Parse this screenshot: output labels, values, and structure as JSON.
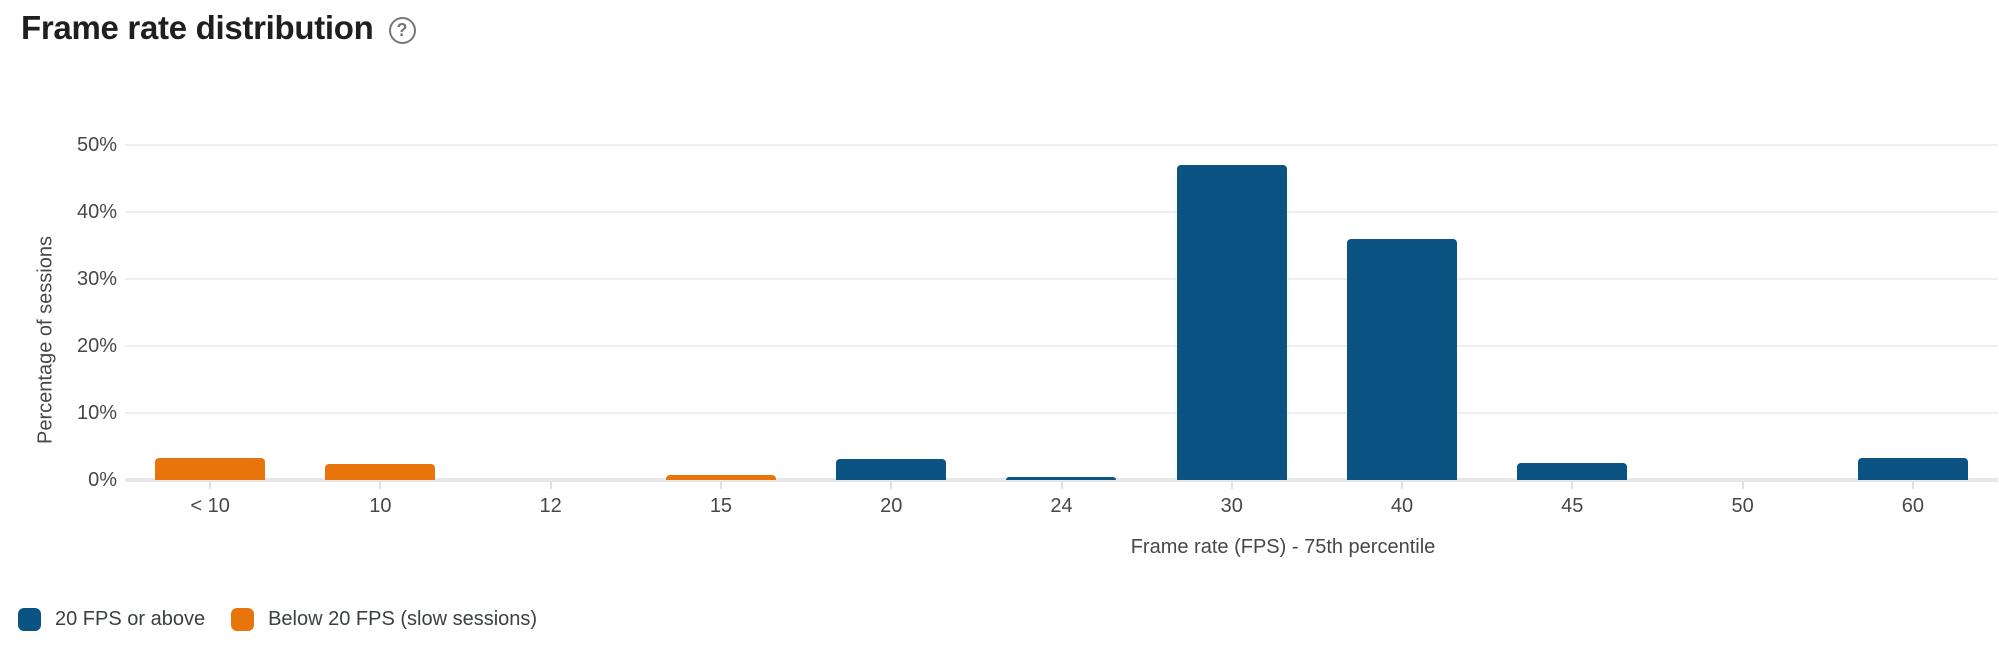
{
  "header": {
    "title": "Frame rate distribution",
    "help_glyph": "?"
  },
  "chart_data": {
    "type": "bar",
    "title": "Frame rate distribution",
    "xlabel": "Frame rate (FPS) - 75th percentile",
    "ylabel": "Percentage of sessions",
    "categories": [
      "< 10",
      "10",
      "12",
      "15",
      "20",
      "24",
      "30",
      "40",
      "45",
      "50",
      "60"
    ],
    "series": [
      {
        "name": "20 FPS or above",
        "color": "#0b5383",
        "values": [
          0,
          0,
          0,
          0,
          3.2,
          0.5,
          47,
          36,
          2.6,
          0,
          3.3
        ]
      },
      {
        "name": "Below 20 FPS (slow sessions)",
        "color": "#e8750c",
        "values": [
          3.3,
          2.4,
          0,
          0.8,
          0,
          0,
          0,
          0,
          0,
          0,
          0
        ]
      }
    ],
    "y_ticks": [
      {
        "value": 0,
        "label": "0%"
      },
      {
        "value": 10,
        "label": "10%"
      },
      {
        "value": 20,
        "label": "20%"
      },
      {
        "value": 30,
        "label": "30%"
      },
      {
        "value": 40,
        "label": "40%"
      },
      {
        "value": 50,
        "label": "50%"
      }
    ],
    "ylim": [
      0,
      50
    ],
    "grid": true,
    "legend_position": "bottom-left"
  }
}
